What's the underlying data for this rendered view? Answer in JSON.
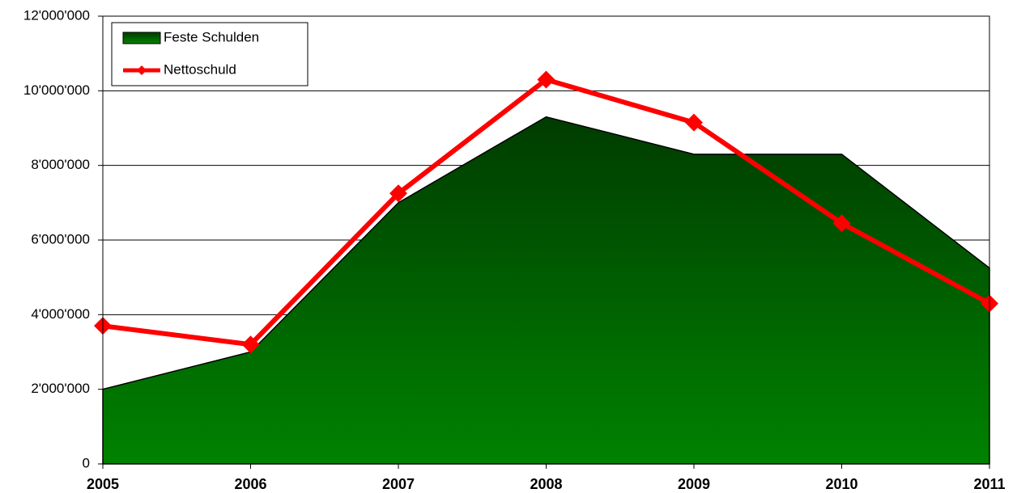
{
  "chart_data": {
    "type": "area-line",
    "categories": [
      "2005",
      "2006",
      "2007",
      "2008",
      "2009",
      "2010",
      "2011"
    ],
    "series": [
      {
        "name": "Feste Schulden",
        "type": "area",
        "color": "#006400",
        "gradient": [
          "#003c00",
          "#008200"
        ],
        "values": [
          2000000,
          3000000,
          7000000,
          9300000,
          8300000,
          8300000,
          5250000
        ]
      },
      {
        "name": "Nettoschuld",
        "type": "line",
        "color": "#ff0000",
        "values": [
          3700000,
          3200000,
          7250000,
          10300000,
          9150000,
          6450000,
          4300000
        ]
      }
    ],
    "ylim": [
      0,
      12000000
    ],
    "yticks": [
      0,
      {
        "value": 2000000,
        "label": "2'000'000"
      },
      {
        "value": 4000000,
        "label": "4'000'000"
      },
      {
        "value": 6000000,
        "label": "6'000'000"
      },
      {
        "value": 8000000,
        "label": "8'000'000"
      },
      {
        "value": 10000000,
        "label": "10'000'000"
      },
      {
        "value": 12000000,
        "label": "12'000'000"
      }
    ],
    "grid": true,
    "legend": "top-left"
  }
}
